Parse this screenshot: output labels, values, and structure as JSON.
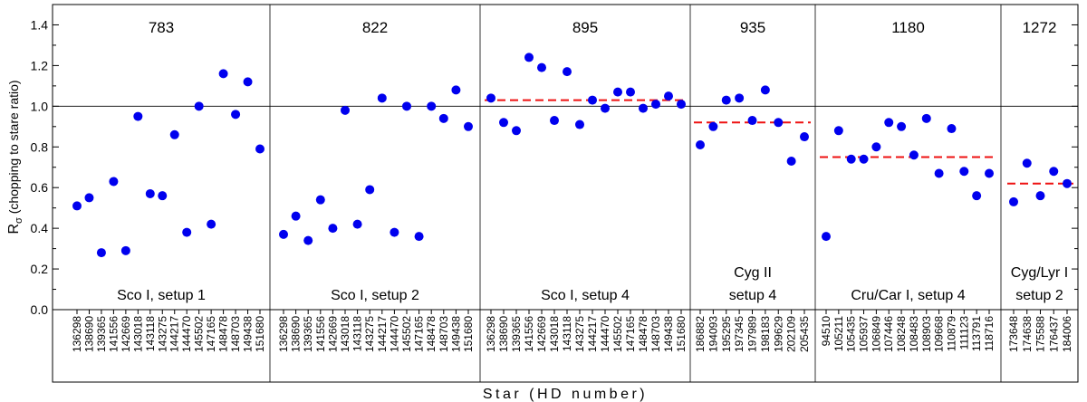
{
  "chart_data": {
    "type": "scatter",
    "ylabel_main": "R",
    "ylabel_sub": "σ",
    "ylabel_rest": " (chopping to stare ratio)",
    "xlabel": "Star (HD number)",
    "ylim": [
      0.0,
      1.5
    ],
    "yticks": [
      "0.0",
      "0.2",
      "0.4",
      "0.6",
      "0.8",
      "1.0",
      "1.2",
      "1.4"
    ],
    "reference_y": 1.0,
    "colors": {
      "points": "#0000ee",
      "mean_line": "#ee1111",
      "frame": "#000000"
    },
    "panels": [
      {
        "title": "783",
        "labels": [
          "Sco I, setup 1"
        ],
        "stars": [
          "136298",
          "138690",
          "139365",
          "141556",
          "142669",
          "143018",
          "143118",
          "143275",
          "144217",
          "144470",
          "145502",
          "147165",
          "148478",
          "148703",
          "149438",
          "151680"
        ],
        "values": [
          0.51,
          0.55,
          0.28,
          0.63,
          0.29,
          0.95,
          0.57,
          0.56,
          0.86,
          0.38,
          1.0,
          0.42,
          1.16,
          0.96,
          1.12,
          0.79
        ],
        "mean": null
      },
      {
        "title": "822",
        "labels": [
          "Sco I, setup 2"
        ],
        "stars": [
          "136298",
          "138690",
          "139365",
          "141556",
          "142669",
          "143018",
          "143118",
          "143275",
          "144217",
          "144470",
          "145502",
          "147165",
          "148478",
          "148703",
          "149438",
          "151680"
        ],
        "values": [
          0.37,
          0.46,
          0.34,
          0.54,
          0.4,
          0.98,
          0.42,
          0.59,
          1.04,
          0.38,
          1.0,
          0.36,
          1.0,
          0.94,
          1.08,
          0.9
        ],
        "mean": null
      },
      {
        "title": "895",
        "labels": [
          "Sco I, setup 4"
        ],
        "stars": [
          "136298",
          "138690",
          "139365",
          "141556",
          "142669",
          "143018",
          "143118",
          "143275",
          "144217",
          "144470",
          "145502",
          "147165",
          "148478",
          "148703",
          "149438",
          "151680"
        ],
        "values": [
          1.04,
          0.92,
          0.88,
          1.24,
          1.19,
          0.93,
          1.17,
          0.91,
          1.03,
          0.99,
          1.07,
          1.07,
          0.99,
          1.01,
          1.05,
          1.01
        ],
        "mean": 1.03
      },
      {
        "title": "935",
        "labels": [
          "Cyg II",
          "setup 4"
        ],
        "stars": [
          "186882",
          "194093",
          "195295",
          "197345",
          "197989",
          "198183",
          "199629",
          "202109",
          "205435"
        ],
        "values": [
          0.81,
          0.9,
          1.03,
          1.04,
          0.93,
          1.08,
          0.92,
          0.73,
          0.85
        ],
        "mean": 0.92
      },
      {
        "title": "1180",
        "labels": [
          "Cru/Car I, setup 4"
        ],
        "stars": [
          "94510",
          "105211",
          "105435",
          "105937",
          "106849",
          "107446",
          "108248",
          "108483",
          "108903",
          "109668",
          "110879",
          "111123",
          "113791",
          "118716"
        ],
        "values": [
          0.36,
          0.88,
          0.74,
          0.74,
          0.8,
          0.92,
          0.9,
          0.76,
          0.94,
          0.67,
          0.89,
          0.68,
          0.56,
          0.67
        ],
        "mean": 0.75
      },
      {
        "title": "1272",
        "labels": [
          "Cyg/Lyr I",
          "setup 2"
        ],
        "stars": [
          "173648",
          "174638",
          "175588",
          "176437",
          "184006"
        ],
        "values": [
          0.53,
          0.72,
          0.56,
          0.68,
          0.62
        ],
        "mean": 0.62
      }
    ]
  }
}
